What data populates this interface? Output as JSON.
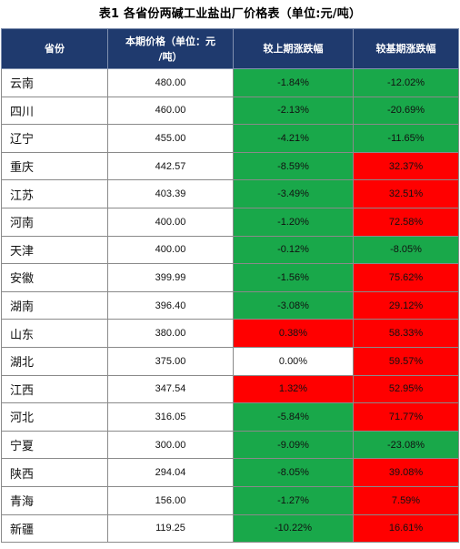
{
  "title": "表1   各省份两碱工业盐出厂价格表（单位:元/吨）",
  "headers": {
    "province": "省份",
    "price_line1": "本期价格（单位：元",
    "price_line2": "/吨）",
    "mom": "较上期涨跌幅",
    "yoy": "较基期涨跌幅"
  },
  "colors": {
    "header": "#1f3a6e",
    "up": "#ff0000",
    "down": "#19a84a",
    "flat": "#ffffff"
  },
  "rows": [
    {
      "province": "云南",
      "price": "480.00",
      "mom": "-1.84%",
      "mom_color": "green",
      "yoy": "-12.02%",
      "yoy_color": "green"
    },
    {
      "province": "四川",
      "price": "460.00",
      "mom": "-2.13%",
      "mom_color": "green",
      "yoy": "-20.69%",
      "yoy_color": "green"
    },
    {
      "province": "辽宁",
      "price": "455.00",
      "mom": "-4.21%",
      "mom_color": "green",
      "yoy": "-11.65%",
      "yoy_color": "green"
    },
    {
      "province": "重庆",
      "price": "442.57",
      "mom": "-8.59%",
      "mom_color": "green",
      "yoy": "32.37%",
      "yoy_color": "red"
    },
    {
      "province": "江苏",
      "price": "403.39",
      "mom": "-3.49%",
      "mom_color": "green",
      "yoy": "32.51%",
      "yoy_color": "red"
    },
    {
      "province": "河南",
      "price": "400.00",
      "mom": "-1.20%",
      "mom_color": "green",
      "yoy": "72.58%",
      "yoy_color": "red"
    },
    {
      "province": "天津",
      "price": "400.00",
      "mom": "-0.12%",
      "mom_color": "green",
      "yoy": "-8.05%",
      "yoy_color": "green"
    },
    {
      "province": "安徽",
      "price": "399.99",
      "mom": "-1.56%",
      "mom_color": "green",
      "yoy": "75.62%",
      "yoy_color": "red"
    },
    {
      "province": "湖南",
      "price": "396.40",
      "mom": "-3.08%",
      "mom_color": "green",
      "yoy": "29.12%",
      "yoy_color": "red"
    },
    {
      "province": "山东",
      "price": "380.00",
      "mom": "0.38%",
      "mom_color": "red",
      "yoy": "58.33%",
      "yoy_color": "red"
    },
    {
      "province": "湖北",
      "price": "375.00",
      "mom": "0.00%",
      "mom_color": "white",
      "yoy": "59.57%",
      "yoy_color": "red"
    },
    {
      "province": "江西",
      "price": "347.54",
      "mom": "1.32%",
      "mom_color": "red",
      "yoy": "52.95%",
      "yoy_color": "red"
    },
    {
      "province": "河北",
      "price": "316.05",
      "mom": "-5.84%",
      "mom_color": "green",
      "yoy": "71.77%",
      "yoy_color": "red"
    },
    {
      "province": "宁夏",
      "price": "300.00",
      "mom": "-9.09%",
      "mom_color": "green",
      "yoy": "-23.08%",
      "yoy_color": "green"
    },
    {
      "province": "陕西",
      "price": "294.04",
      "mom": "-8.05%",
      "mom_color": "green",
      "yoy": "39.08%",
      "yoy_color": "red"
    },
    {
      "province": "青海",
      "price": "156.00",
      "mom": "-1.27%",
      "mom_color": "green",
      "yoy": "7.59%",
      "yoy_color": "red"
    },
    {
      "province": "新疆",
      "price": "119.25",
      "mom": "-10.22%",
      "mom_color": "green",
      "yoy": "16.61%",
      "yoy_color": "red"
    }
  ]
}
